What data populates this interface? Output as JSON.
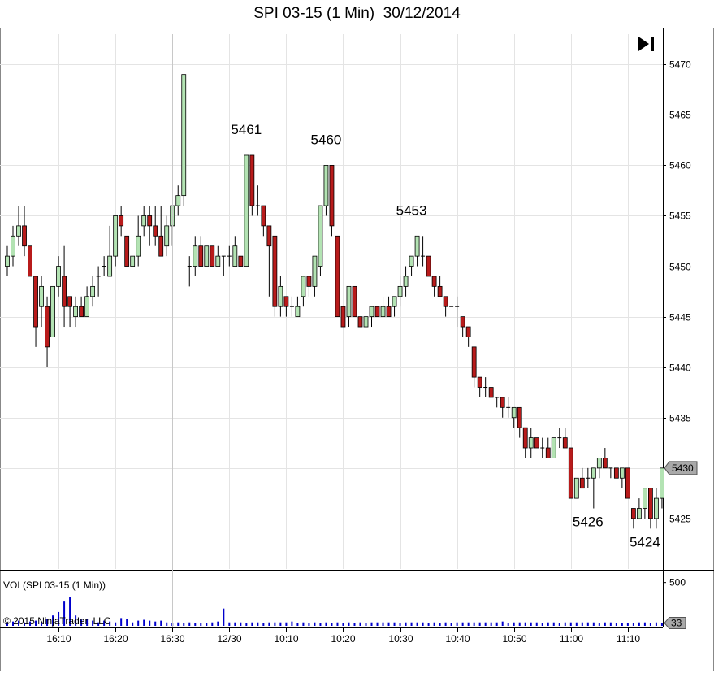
{
  "title": "SPI 03-15 (1 Min)  30/12/2014",
  "volume_label": "VOL(SPI 03-15 (1 Min))",
  "copyright": "© 2015 NinjaTrader, LLC",
  "colors": {
    "up": "#b3e3b3",
    "down": "#b81b1b",
    "wick": "#000000",
    "volume": "#0000cc",
    "grid": "#e4e4e4",
    "last_badge": "#a9a9a9"
  },
  "chart_data": {
    "type": "candlestick",
    "ylim": [
      5420,
      5473
    ],
    "yticks": [
      5425,
      5430,
      5435,
      5440,
      5445,
      5450,
      5455,
      5460,
      5465,
      5470
    ],
    "xticks": [
      "16:10",
      "16:20",
      "16:30",
      "12/30",
      "10:10",
      "10:20",
      "10:30",
      "10:40",
      "10:50",
      "11:00",
      "11:10"
    ],
    "last_price": "5430",
    "candles": [
      {
        "o": 5450,
        "h": 5452,
        "l": 5449,
        "c": 5451
      },
      {
        "o": 5451,
        "h": 5454,
        "l": 5450,
        "c": 5453
      },
      {
        "o": 5453,
        "h": 5456,
        "l": 5452,
        "c": 5454
      },
      {
        "o": 5454,
        "h": 5456,
        "l": 5451,
        "c": 5452
      },
      {
        "o": 5452,
        "h": 5452,
        "l": 5449,
        "c": 5449
      },
      {
        "o": 5449,
        "h": 5449,
        "l": 5442,
        "c": 5444
      },
      {
        "o": 5446,
        "h": 5449,
        "l": 5444,
        "c": 5448
      },
      {
        "o": 5446,
        "h": 5447,
        "l": 5440,
        "c": 5442
      },
      {
        "o": 5443,
        "h": 5448,
        "l": 5443,
        "c": 5448
      },
      {
        "o": 5448,
        "h": 5451,
        "l": 5447,
        "c": 5450
      },
      {
        "o": 5449,
        "h": 5452,
        "l": 5444,
        "c": 5446
      },
      {
        "o": 5447,
        "h": 5447,
        "l": 5444,
        "c": 5446
      },
      {
        "o": 5445,
        "h": 5447,
        "l": 5444,
        "c": 5446
      },
      {
        "o": 5446,
        "h": 5447,
        "l": 5445,
        "c": 5445
      },
      {
        "o": 5445,
        "h": 5448,
        "l": 5445,
        "c": 5447
      },
      {
        "o": 5447,
        "h": 5449,
        "l": 5446,
        "c": 5448
      },
      {
        "o": 5449,
        "h": 5450,
        "l": 5447,
        "c": 5449
      },
      {
        "o": 5450,
        "h": 5451,
        "l": 5449,
        "c": 5450
      },
      {
        "o": 5449,
        "h": 5454,
        "l": 5449,
        "c": 5451
      },
      {
        "o": 5451,
        "h": 5455,
        "l": 5450,
        "c": 5455
      },
      {
        "o": 5455,
        "h": 5456,
        "l": 5453,
        "c": 5454
      },
      {
        "o": 5453,
        "h": 5453,
        "l": 5450,
        "c": 5450
      },
      {
        "o": 5450,
        "h": 5451,
        "l": 5450,
        "c": 5451
      },
      {
        "o": 5451,
        "h": 5455,
        "l": 5450,
        "c": 5453
      },
      {
        "o": 5454,
        "h": 5456,
        "l": 5453,
        "c": 5455
      },
      {
        "o": 5455,
        "h": 5456,
        "l": 5452,
        "c": 5454
      },
      {
        "o": 5454,
        "h": 5456,
        "l": 5452,
        "c": 5453
      },
      {
        "o": 5453,
        "h": 5456,
        "l": 5451,
        "c": 5451
      },
      {
        "o": 5452,
        "h": 5455,
        "l": 5451,
        "c": 5454
      },
      {
        "o": 5454,
        "h": 5456,
        "l": 5452,
        "c": 5456
      },
      {
        "o": 5456,
        "h": 5458,
        "l": 5455,
        "c": 5457
      },
      {
        "o": 5457,
        "h": 5469,
        "l": 5456,
        "c": 5469
      },
      {
        "o": 5450,
        "h": 5451,
        "l": 5448,
        "c": 5450
      },
      {
        "o": 5450,
        "h": 5453,
        "l": 5449,
        "c": 5452
      },
      {
        "o": 5452,
        "h": 5453,
        "l": 5450,
        "c": 5450
      },
      {
        "o": 5450,
        "h": 5452,
        "l": 5450,
        "c": 5452
      },
      {
        "o": 5452,
        "h": 5452,
        "l": 5450,
        "c": 5450
      },
      {
        "o": 5450,
        "h": 5452,
        "l": 5450,
        "c": 5451
      },
      {
        "o": 5451,
        "h": 5451,
        "l": 5449,
        "c": 5451
      },
      {
        "o": 5451,
        "h": 5452,
        "l": 5450,
        "c": 5451
      },
      {
        "o": 5450,
        "h": 5453,
        "l": 5450,
        "c": 5452
      },
      {
        "o": 5451,
        "h": 5451,
        "l": 5450,
        "c": 5450
      },
      {
        "o": 5450,
        "h": 5461,
        "l": 5450,
        "c": 5461
      },
      {
        "o": 5461,
        "h": 5461,
        "l": 5455,
        "c": 5456
      },
      {
        "o": 5456,
        "h": 5458,
        "l": 5455,
        "c": 5456
      },
      {
        "o": 5456,
        "h": 5456,
        "l": 5453,
        "c": 5454
      },
      {
        "o": 5454,
        "h": 5454,
        "l": 5447,
        "c": 5452
      },
      {
        "o": 5453,
        "h": 5453,
        "l": 5445,
        "c": 5446
      },
      {
        "o": 5446,
        "h": 5449,
        "l": 5445,
        "c": 5448
      },
      {
        "o": 5447,
        "h": 5447,
        "l": 5445,
        "c": 5446
      },
      {
        "o": 5446,
        "h": 5447,
        "l": 5445,
        "c": 5446
      },
      {
        "o": 5445,
        "h": 5447,
        "l": 5445,
        "c": 5446
      },
      {
        "o": 5447,
        "h": 5449,
        "l": 5446,
        "c": 5449
      },
      {
        "o": 5449,
        "h": 5449,
        "l": 5447,
        "c": 5448
      },
      {
        "o": 5448,
        "h": 5451,
        "l": 5447,
        "c": 5451
      },
      {
        "o": 5450,
        "h": 5456,
        "l": 5449,
        "c": 5456
      },
      {
        "o": 5456,
        "h": 5460,
        "l": 5455,
        "c": 5460
      },
      {
        "o": 5460,
        "h": 5460,
        "l": 5453,
        "c": 5454
      },
      {
        "o": 5453,
        "h": 5453,
        "l": 5445,
        "c": 5445
      },
      {
        "o": 5446,
        "h": 5446,
        "l": 5444,
        "c": 5444
      },
      {
        "o": 5445,
        "h": 5448,
        "l": 5444,
        "c": 5448
      },
      {
        "o": 5448,
        "h": 5448,
        "l": 5445,
        "c": 5445
      },
      {
        "o": 5445,
        "h": 5445,
        "l": 5444,
        "c": 5444
      },
      {
        "o": 5444,
        "h": 5445,
        "l": 5444,
        "c": 5445
      },
      {
        "o": 5445,
        "h": 5446,
        "l": 5444,
        "c": 5446
      },
      {
        "o": 5446,
        "h": 5446,
        "l": 5445,
        "c": 5445
      },
      {
        "o": 5445,
        "h": 5447,
        "l": 5445,
        "c": 5446
      },
      {
        "o": 5446,
        "h": 5447,
        "l": 5445,
        "c": 5445
      },
      {
        "o": 5446,
        "h": 5447,
        "l": 5445,
        "c": 5447
      },
      {
        "o": 5447,
        "h": 5449,
        "l": 5446,
        "c": 5448
      },
      {
        "o": 5448,
        "h": 5450,
        "l": 5447,
        "c": 5449
      },
      {
        "o": 5450,
        "h": 5451,
        "l": 5449,
        "c": 5451
      },
      {
        "o": 5451,
        "h": 5453,
        "l": 5450,
        "c": 5453
      },
      {
        "o": 5451,
        "h": 5453,
        "l": 5450,
        "c": 5451
      },
      {
        "o": 5451,
        "h": 5451,
        "l": 5449,
        "c": 5449
      },
      {
        "o": 5449,
        "h": 5449,
        "l": 5447,
        "c": 5448
      },
      {
        "o": 5448,
        "h": 5449,
        "l": 5447,
        "c": 5447
      },
      {
        "o": 5447,
        "h": 5447,
        "l": 5445,
        "c": 5446
      },
      {
        "o": 5446,
        "h": 5446,
        "l": 5446,
        "c": 5446
      },
      {
        "o": 5446,
        "h": 5447,
        "l": 5444,
        "c": 5446
      },
      {
        "o": 5445,
        "h": 5445,
        "l": 5443,
        "c": 5444
      },
      {
        "o": 5444,
        "h": 5444,
        "l": 5442,
        "c": 5443
      },
      {
        "o": 5442,
        "h": 5442,
        "l": 5438,
        "c": 5439
      },
      {
        "o": 5439,
        "h": 5439,
        "l": 5437,
        "c": 5438
      },
      {
        "o": 5438,
        "h": 5439,
        "l": 5437,
        "c": 5438
      },
      {
        "o": 5438,
        "h": 5438,
        "l": 5437,
        "c": 5437
      },
      {
        "o": 5437,
        "h": 5437,
        "l": 5436,
        "c": 5437
      },
      {
        "o": 5437,
        "h": 5437,
        "l": 5435,
        "c": 5436
      },
      {
        "o": 5436,
        "h": 5437,
        "l": 5435,
        "c": 5436
      },
      {
        "o": 5435,
        "h": 5436,
        "l": 5434,
        "c": 5436
      },
      {
        "o": 5436,
        "h": 5436,
        "l": 5433,
        "c": 5434
      },
      {
        "o": 5434,
        "h": 5434,
        "l": 5431,
        "c": 5432
      },
      {
        "o": 5432,
        "h": 5434,
        "l": 5431,
        "c": 5433
      },
      {
        "o": 5433,
        "h": 5433,
        "l": 5432,
        "c": 5432
      },
      {
        "o": 5432,
        "h": 5433,
        "l": 5431,
        "c": 5432
      },
      {
        "o": 5432,
        "h": 5433,
        "l": 5431,
        "c": 5431
      },
      {
        "o": 5431,
        "h": 5433,
        "l": 5431,
        "c": 5433
      },
      {
        "o": 5433,
        "h": 5434,
        "l": 5432,
        "c": 5433
      },
      {
        "o": 5433,
        "h": 5434,
        "l": 5432,
        "c": 5432
      },
      {
        "o": 5432,
        "h": 5432,
        "l": 5427,
        "c": 5427
      },
      {
        "o": 5427,
        "h": 5429,
        "l": 5427,
        "c": 5429
      },
      {
        "o": 5429,
        "h": 5430,
        "l": 5428,
        "c": 5428
      },
      {
        "o": 5429,
        "h": 5430,
        "l": 5428,
        "c": 5429
      },
      {
        "o": 5429,
        "h": 5430,
        "l": 5426,
        "c": 5430
      },
      {
        "o": 5430,
        "h": 5431,
        "l": 5429,
        "c": 5431
      },
      {
        "o": 5431,
        "h": 5432,
        "l": 5430,
        "c": 5430
      },
      {
        "o": 5430,
        "h": 5430,
        "l": 5429,
        "c": 5430
      },
      {
        "o": 5430,
        "h": 5430,
        "l": 5429,
        "c": 5429
      },
      {
        "o": 5429,
        "h": 5430,
        "l": 5428,
        "c": 5430
      },
      {
        "o": 5430,
        "h": 5430,
        "l": 5427,
        "c": 5427
      },
      {
        "o": 5426,
        "h": 5426,
        "l": 5424,
        "c": 5425
      },
      {
        "o": 5425,
        "h": 5427,
        "l": 5425,
        "c": 5426
      },
      {
        "o": 5426,
        "h": 5428,
        "l": 5425,
        "c": 5428
      },
      {
        "o": 5428,
        "h": 5428,
        "l": 5424,
        "c": 5425
      },
      {
        "o": 5425,
        "h": 5428,
        "l": 5424,
        "c": 5427
      },
      {
        "o": 5427,
        "h": 5430,
        "l": 5426,
        "c": 5430
      }
    ],
    "volume": {
      "ylim": [
        0,
        600
      ],
      "yticks": [
        500
      ],
      "last_value": "33",
      "values": [
        40,
        50,
        60,
        40,
        50,
        60,
        40,
        80,
        120,
        160,
        280,
        330,
        120,
        70,
        80,
        60,
        40,
        60,
        50,
        40,
        90,
        80,
        40,
        60,
        70,
        60,
        50,
        60,
        40,
        30,
        40,
        30,
        40,
        30,
        30,
        30,
        40,
        50,
        200,
        40,
        40,
        40,
        30,
        40,
        40,
        30,
        40,
        40,
        40,
        40,
        50,
        30,
        40,
        30,
        40,
        30,
        40,
        30,
        40,
        30,
        40,
        30,
        40,
        30,
        40,
        40,
        40,
        40,
        40,
        30,
        40,
        40,
        40,
        40,
        30,
        40,
        30,
        40,
        30,
        40,
        40,
        40,
        40,
        40,
        40,
        40,
        40,
        50,
        30,
        40,
        40,
        40,
        40,
        40,
        30,
        40,
        40,
        30,
        40,
        40,
        40,
        40,
        40,
        40,
        30,
        40,
        40,
        30,
        30,
        30,
        30,
        40,
        40,
        30,
        40,
        30,
        30,
        40,
        30,
        30
      ]
    },
    "annotations": [
      {
        "text": "5461",
        "index": 42,
        "value": 5461,
        "position": "above"
      },
      {
        "text": "5460",
        "index": 56,
        "value": 5460,
        "position": "above"
      },
      {
        "text": "5453",
        "index": 71,
        "value": 5453,
        "position": "above"
      },
      {
        "text": "5426",
        "index": 102,
        "value": 5426,
        "position": "below"
      },
      {
        "text": "5424",
        "index": 112,
        "value": 5424,
        "position": "below"
      }
    ]
  }
}
